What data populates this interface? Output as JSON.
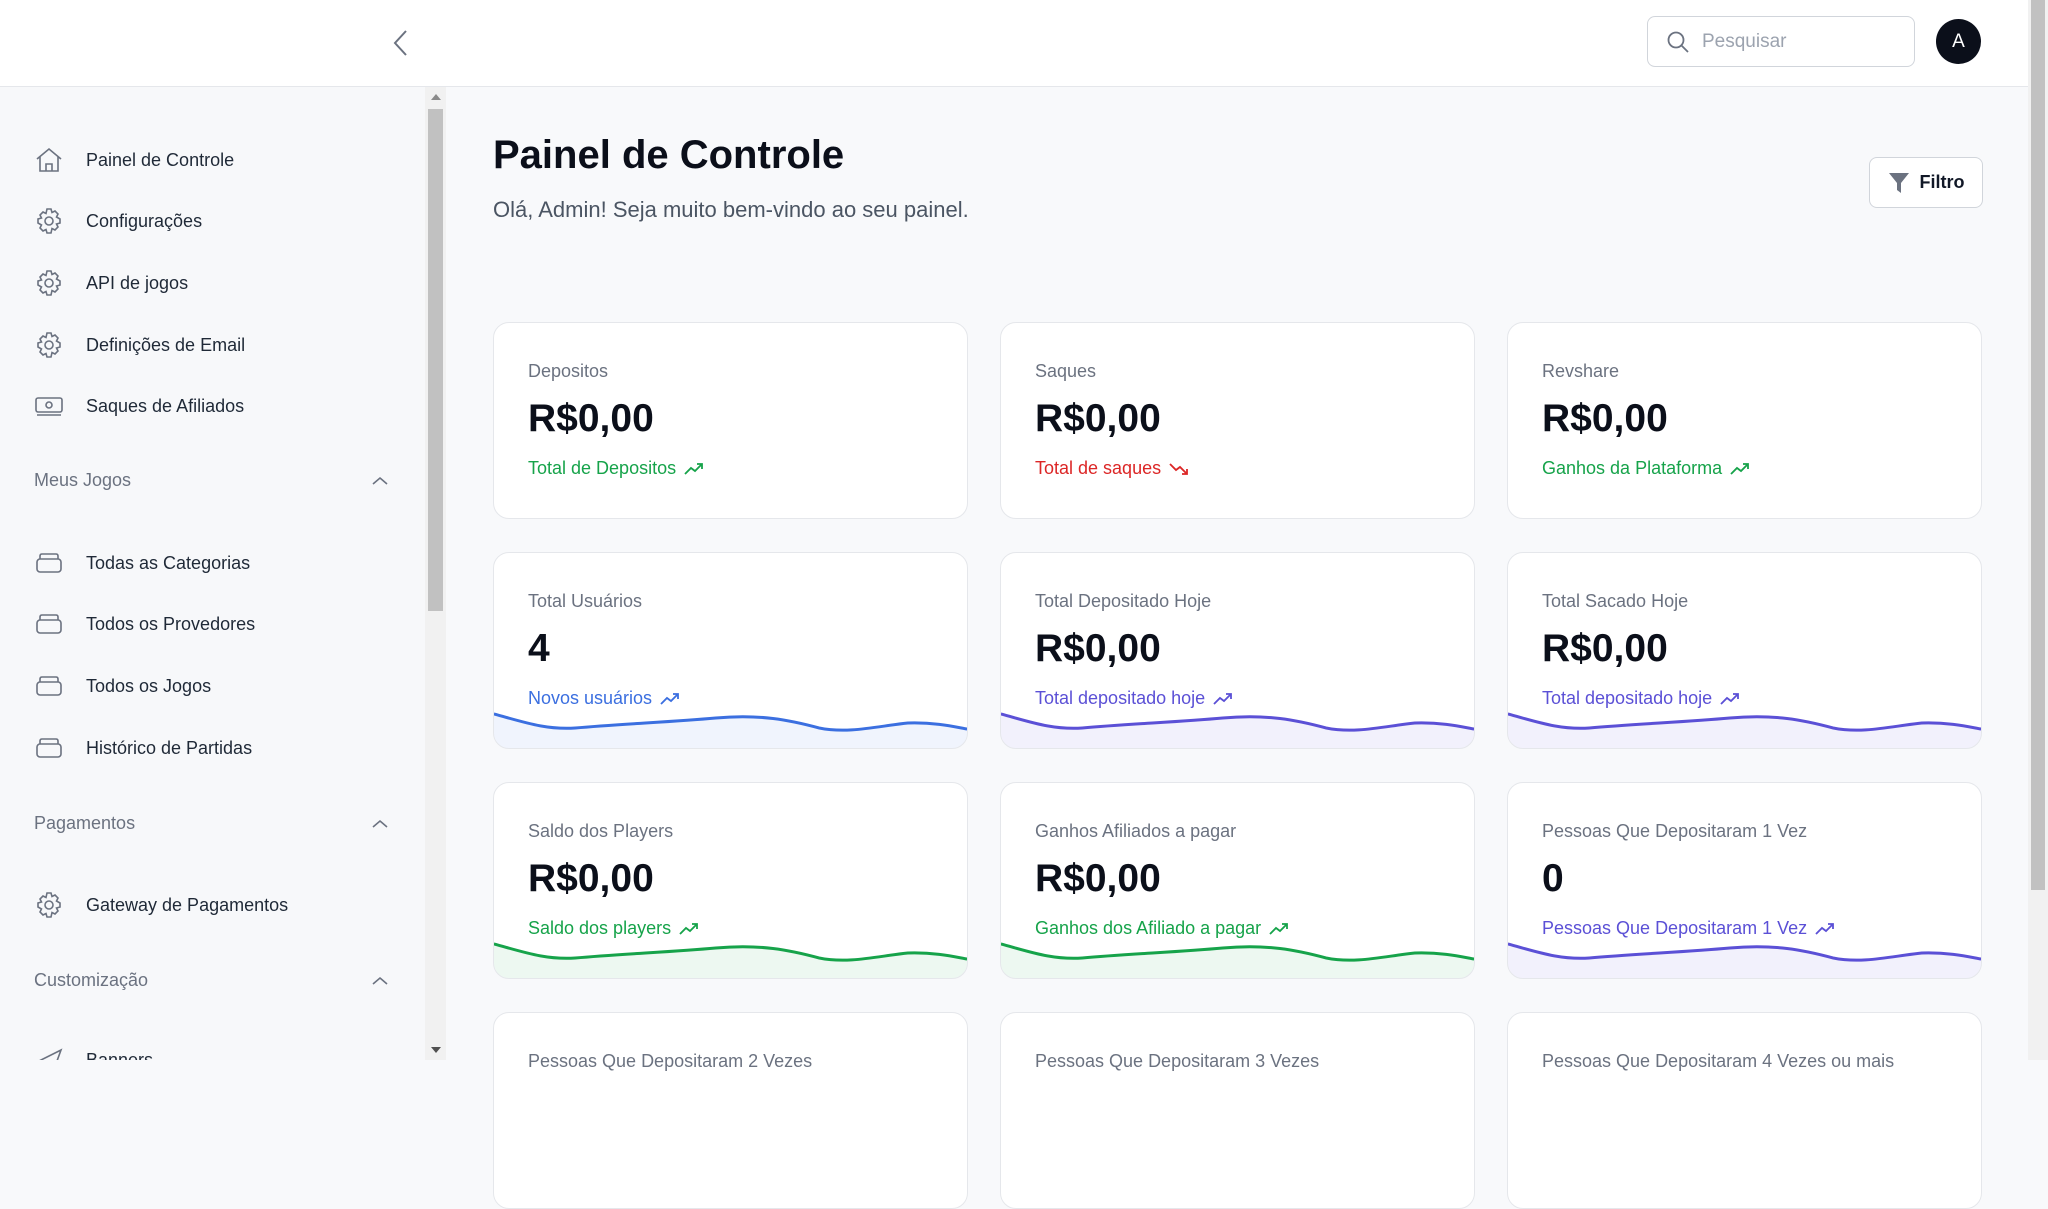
{
  "header": {
    "search_placeholder": "Pesquisar",
    "avatar_initial": "A"
  },
  "sidebar": {
    "items": [
      {
        "label": "Painel de Controle",
        "icon": "home-icon"
      },
      {
        "label": "Configurações",
        "icon": "gear-icon"
      },
      {
        "label": "API de jogos",
        "icon": "gear-icon"
      },
      {
        "label": "Definições de Email",
        "icon": "gear-icon"
      },
      {
        "label": "Saques de Afiliados",
        "icon": "cash-icon"
      }
    ],
    "sections": [
      {
        "title": "Meus Jogos",
        "items": [
          "Todas as Categorias",
          "Todos os Provedores",
          "Todos os Jogos",
          "Histórico de Partidas"
        ]
      },
      {
        "title": "Pagamentos",
        "items": [
          "Gateway de Pagamentos"
        ]
      },
      {
        "title": "Customização",
        "items": [
          "Banners"
        ]
      }
    ]
  },
  "main": {
    "title": "Painel de Controle",
    "subtitle": "Olá, Admin! Seja muito bem-vindo ao seu painel.",
    "filter_label": "Filtro"
  },
  "cards": [
    {
      "label": "Depositos",
      "value": "R$0,00",
      "sub": "Total de Depositos",
      "trend": "up",
      "color": "#16a34a",
      "spark": false
    },
    {
      "label": "Saques",
      "value": "R$0,00",
      "sub": "Total de saques",
      "trend": "down",
      "color": "#dc2626",
      "spark": false
    },
    {
      "label": "Revshare",
      "value": "R$0,00",
      "sub": "Ganhos da Plataforma",
      "trend": "up",
      "color": "#16a34a",
      "spark": false
    },
    {
      "label": "Total Usuários",
      "value": "4",
      "sub": "Novos usuários",
      "trend": "up",
      "color": "#3b6fe0",
      "spark": true
    },
    {
      "label": "Total Depositado Hoje",
      "value": "R$0,00",
      "sub": "Total depositado hoje",
      "trend": "up",
      "color": "#5b50d6",
      "spark": true
    },
    {
      "label": "Total Sacado Hoje",
      "value": "R$0,00",
      "sub": "Total depositado hoje",
      "trend": "up",
      "color": "#5b50d6",
      "spark": true
    },
    {
      "label": "Saldo dos Players",
      "value": "R$0,00",
      "sub": "Saldo dos players",
      "trend": "up",
      "color": "#16a34a",
      "spark": true
    },
    {
      "label": "Ganhos Afiliados a pagar",
      "value": "R$0,00",
      "sub": "Ganhos dos Afiliado a pagar",
      "trend": "up",
      "color": "#16a34a",
      "spark": true
    },
    {
      "label": "Pessoas Que Depositaram 1 Vez",
      "value": "0",
      "sub": "Pessoas Que Depositaram 1 Vez",
      "trend": "up",
      "color": "#5b50d6",
      "spark": true
    },
    {
      "label": "Pessoas Que Depositaram 2 Vezes",
      "value": "",
      "sub": "",
      "trend": "",
      "color": "#6b7280",
      "spark": false
    },
    {
      "label": "Pessoas Que Depositaram 3 Vezes",
      "value": "",
      "sub": "",
      "trend": "",
      "color": "#6b7280",
      "spark": false
    },
    {
      "label": "Pessoas Que Depositaram 4 Vezes ou mais",
      "value": "",
      "sub": "",
      "trend": "",
      "color": "#6b7280",
      "spark": false
    }
  ]
}
